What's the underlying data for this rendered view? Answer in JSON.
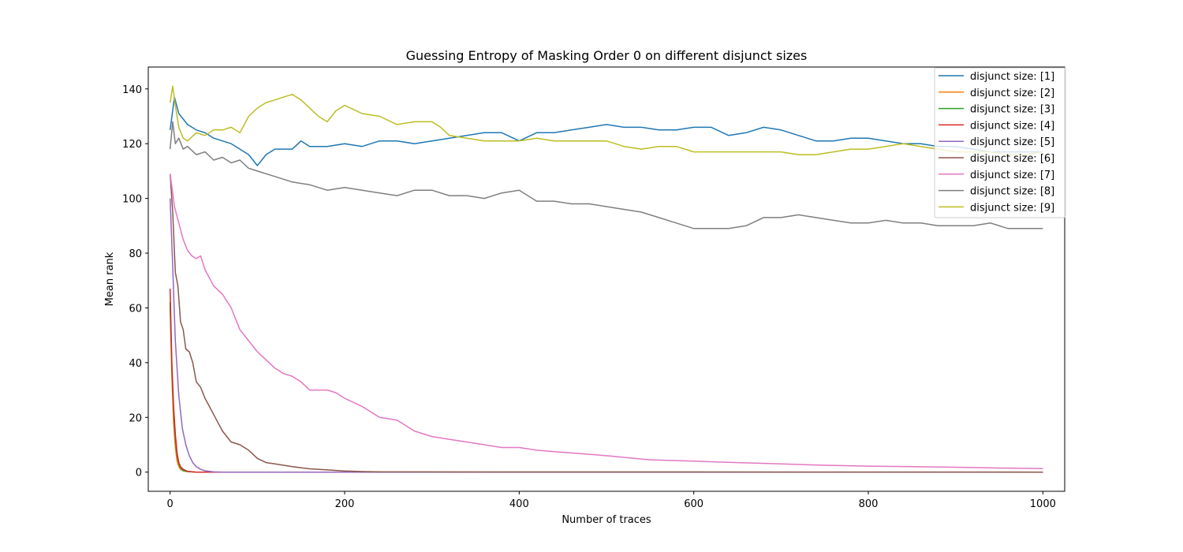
{
  "chart_data": {
    "type": "line",
    "title": "Guessing Entropy of Masking Order 0 on different disjunct sizes",
    "xlabel": "Number of traces",
    "ylabel": "Mean rank",
    "xlim": [
      -25,
      1025
    ],
    "ylim": [
      -7,
      148
    ],
    "xticks": [
      0,
      200,
      400,
      600,
      800,
      1000
    ],
    "yticks": [
      0,
      20,
      40,
      60,
      80,
      100,
      120,
      140
    ],
    "grid": false,
    "legend_position": "top-right",
    "series": [
      {
        "name": "disjunct size: [1]",
        "color": "#1f77b4",
        "x": [
          0,
          5,
          10,
          20,
          30,
          40,
          50,
          60,
          70,
          80,
          90,
          100,
          110,
          120,
          140,
          150,
          160,
          180,
          200,
          220,
          240,
          260,
          280,
          300,
          320,
          340,
          360,
          380,
          400,
          420,
          440,
          460,
          480,
          500,
          520,
          540,
          560,
          580,
          600,
          620,
          640,
          660,
          680,
          700,
          720,
          740,
          760,
          780,
          800,
          820,
          840,
          860,
          880,
          900,
          920,
          940,
          960,
          980,
          1000
        ],
        "y": [
          125,
          137,
          131,
          127,
          125,
          124,
          122,
          121,
          120,
          118,
          116,
          112,
          116,
          118,
          118,
          121,
          119,
          119,
          120,
          119,
          121,
          121,
          120,
          121,
          122,
          123,
          124,
          124,
          121,
          124,
          124,
          125,
          126,
          127,
          126,
          126,
          125,
          125,
          126,
          126,
          123,
          124,
          126,
          125,
          123,
          121,
          121,
          122,
          122,
          121,
          120,
          120,
          119,
          119,
          118,
          117,
          117,
          117,
          117
        ]
      },
      {
        "name": "disjunct size: [2]",
        "color": "#ff7f0e",
        "x": [
          0,
          2,
          4,
          6,
          8,
          10,
          12,
          15,
          20,
          30,
          1000
        ],
        "y": [
          60,
          35,
          18,
          9,
          4,
          2,
          1,
          0.5,
          0.2,
          0,
          0
        ]
      },
      {
        "name": "disjunct size: [3]",
        "color": "#2ca02c",
        "x": [
          0,
          2,
          4,
          6,
          8,
          10,
          12,
          15,
          20,
          30,
          1000
        ],
        "y": [
          62,
          38,
          22,
          12,
          6,
          3,
          1.5,
          0.5,
          0.2,
          0,
          0
        ]
      },
      {
        "name": "disjunct size: [4]",
        "color": "#d62728",
        "x": [
          0,
          2,
          4,
          6,
          8,
          10,
          12,
          15,
          20,
          30,
          1000
        ],
        "y": [
          67,
          40,
          24,
          14,
          7,
          3.5,
          2,
          1,
          0.3,
          0,
          0
        ]
      },
      {
        "name": "disjunct size: [5]",
        "color": "#9467bd",
        "x": [
          0,
          3,
          6,
          10,
          14,
          18,
          22,
          26,
          30,
          35,
          40,
          50,
          60,
          1000
        ],
        "y": [
          100,
          75,
          48,
          28,
          16,
          10,
          6,
          3.5,
          2,
          1,
          0.5,
          0.1,
          0,
          0
        ]
      },
      {
        "name": "disjunct size: [6]",
        "color": "#8c564b",
        "x": [
          0,
          3,
          6,
          9,
          12,
          15,
          18,
          22,
          26,
          30,
          35,
          40,
          45,
          50,
          55,
          60,
          65,
          70,
          80,
          90,
          100,
          110,
          120,
          140,
          160,
          180,
          200,
          220,
          240,
          1000
        ],
        "y": [
          109,
          95,
          73,
          68,
          55,
          52,
          45,
          44,
          40,
          33,
          31,
          27,
          24,
          21,
          18,
          15,
          13,
          11,
          10,
          8,
          5,
          3.5,
          3,
          2,
          1.2,
          0.8,
          0.4,
          0.2,
          0.1,
          0
        ]
      },
      {
        "name": "disjunct size: [7]",
        "color": "#e377c2",
        "x": [
          0,
          5,
          10,
          15,
          20,
          25,
          30,
          35,
          40,
          50,
          60,
          70,
          80,
          90,
          100,
          110,
          120,
          130,
          140,
          150,
          160,
          170,
          180,
          190,
          200,
          220,
          240,
          260,
          280,
          300,
          320,
          340,
          360,
          380,
          400,
          420,
          440,
          460,
          480,
          500,
          550,
          600,
          650,
          700,
          750,
          800,
          850,
          900,
          950,
          1000
        ],
        "y": [
          109,
          97,
          91,
          85,
          81,
          79,
          78,
          79,
          74,
          68,
          65,
          60,
          52,
          48,
          44,
          41,
          38,
          36,
          35,
          33,
          30,
          30,
          30,
          29,
          27,
          24,
          20,
          19,
          15,
          13,
          12,
          11,
          10,
          9,
          9,
          8,
          7.5,
          7,
          6.5,
          6,
          4.5,
          4,
          3.5,
          3,
          2.5,
          2.2,
          2,
          1.8,
          1.5,
          1.3
        ]
      },
      {
        "name": "disjunct size: [8]",
        "color": "#7f7f7f",
        "x": [
          0,
          3,
          6,
          10,
          15,
          20,
          30,
          40,
          50,
          60,
          70,
          80,
          90,
          100,
          120,
          140,
          160,
          180,
          200,
          220,
          240,
          260,
          280,
          300,
          320,
          340,
          360,
          380,
          400,
          420,
          440,
          460,
          480,
          500,
          520,
          540,
          560,
          580,
          600,
          620,
          640,
          660,
          680,
          700,
          720,
          740,
          760,
          780,
          800,
          820,
          840,
          860,
          880,
          900,
          920,
          940,
          960,
          980,
          1000
        ],
        "y": [
          118,
          128,
          120,
          122,
          118,
          119,
          116,
          117,
          114,
          115,
          113,
          114,
          111,
          110,
          108,
          106,
          105,
          103,
          104,
          103,
          102,
          101,
          103,
          103,
          101,
          101,
          100,
          102,
          103,
          99,
          99,
          98,
          98,
          97,
          96,
          95,
          93,
          91,
          89,
          89,
          89,
          90,
          93,
          93,
          94,
          93,
          92,
          91,
          91,
          92,
          91,
          91,
          90,
          90,
          90,
          91,
          89,
          89,
          89
        ]
      },
      {
        "name": "disjunct size: [9]",
        "color": "#bcbd22",
        "x": [
          0,
          3,
          6,
          10,
          15,
          20,
          30,
          40,
          50,
          60,
          70,
          80,
          90,
          100,
          110,
          120,
          130,
          140,
          150,
          160,
          170,
          180,
          190,
          200,
          220,
          240,
          260,
          280,
          300,
          310,
          320,
          340,
          360,
          380,
          400,
          420,
          440,
          460,
          480,
          500,
          520,
          540,
          560,
          580,
          600,
          620,
          640,
          660,
          680,
          700,
          720,
          740,
          760,
          780,
          800,
          820,
          840,
          860,
          880,
          900,
          920,
          940,
          960,
          980,
          1000
        ],
        "y": [
          135,
          141,
          134,
          126,
          122,
          121,
          124,
          123,
          125,
          125,
          126,
          124,
          130,
          133,
          135,
          136,
          137,
          138,
          136,
          133,
          130,
          128,
          132,
          134,
          131,
          130,
          127,
          128,
          128,
          126,
          123,
          122,
          121,
          121,
          121,
          122,
          121,
          121,
          121,
          121,
          119,
          118,
          119,
          119,
          117,
          117,
          117,
          117,
          117,
          117,
          116,
          116,
          117,
          118,
          118,
          119,
          120,
          119,
          118,
          117,
          117,
          117,
          116,
          116,
          117
        ]
      }
    ]
  }
}
